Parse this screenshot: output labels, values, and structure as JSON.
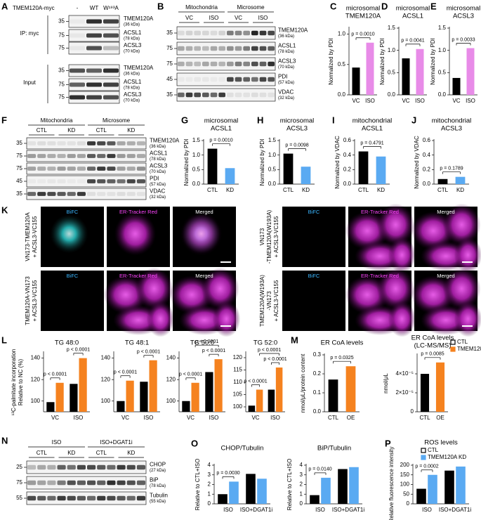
{
  "panels": {
    "A": {
      "letter": "A",
      "header": "TMEM120A-myc",
      "lanes": [
        "-",
        "WT",
        "W¹⁹³A"
      ],
      "groups": [
        "IP: myc",
        "Input"
      ],
      "markers": [
        35,
        75,
        75,
        35,
        75,
        75
      ],
      "bands": [
        {
          "name": "TMEM120A",
          "size": "(36 kDa)"
        },
        {
          "name": "ACSL1",
          "size": "(78 kDa)"
        },
        {
          "name": "ACSL3",
          "size": "(70 kDa)"
        },
        {
          "name": "TMEM120A",
          "size": "(36 kDa)"
        },
        {
          "name": "ACSL1",
          "size": "(78 kDa)"
        },
        {
          "name": "ACSL3",
          "size": "(70 kDa)"
        }
      ]
    },
    "B": {
      "letter": "B",
      "fractions": [
        "Mitochondria",
        "Microsome"
      ],
      "conditions": [
        "VC",
        "ISO",
        "VC",
        "ISO"
      ],
      "markers": [
        35,
        75,
        75,
        45,
        35
      ],
      "bands": [
        {
          "name": "TMEM120A",
          "size": "(36 kDa)"
        },
        {
          "name": "ACSL1",
          "size": "(78 kDa)"
        },
        {
          "name": "ACSL3",
          "size": "(70 kDa)"
        },
        {
          "name": "PDI",
          "size": "(57 kDa)"
        },
        {
          "name": "VDAC",
          "size": "(32 kDa)"
        }
      ]
    },
    "F": {
      "letter": "F",
      "fractions": [
        "Mitochondria",
        "Microsome"
      ],
      "conditions": [
        "CTL",
        "KD",
        "CTL",
        "KD"
      ],
      "markers": [
        35,
        75,
        75,
        45,
        35
      ],
      "bands": [
        {
          "name": "TMEM120A",
          "size": "(36 kDa)"
        },
        {
          "name": "ACSL1",
          "size": "(78 kDa)"
        },
        {
          "name": "ACSL3",
          "size": "(70 kDa)"
        },
        {
          "name": "PDI",
          "size": "(57 kDa)"
        },
        {
          "name": "VDAC",
          "size": "(32 kDa)"
        }
      ]
    },
    "K": {
      "letter": "K",
      "channels": [
        "BiFC",
        "ER-Tracker Red",
        "Merged"
      ],
      "constructs": [
        [
          "VN173-TMEM120A",
          "+ ACSL3-VC155"
        ],
        [
          "VN173",
          "-TMEM120A(W193A)",
          "+ ACSL3-VC155"
        ],
        [
          "TMEM120A-VN173",
          "+ ACSL3-VC155"
        ],
        [
          "TMEM120A(W193A)",
          "-VN173",
          "+ ACSL3-VC155"
        ]
      ]
    },
    "N": {
      "letter": "N",
      "fractions": [
        "ISO",
        "ISO+DGAT1i"
      ],
      "conditions": [
        "CTL",
        "KD",
        "CTL",
        "KD"
      ],
      "markers": [
        25,
        75,
        55
      ],
      "bands": [
        {
          "name": "CHOP",
          "size": "(27 kDa)"
        },
        {
          "name": "BiP",
          "size": "(78 kDa)"
        },
        {
          "name": "Tubulin",
          "size": "(55 kDa)"
        }
      ]
    }
  },
  "legends": [
    {
      "entries": [
        {
          "label": "CTL",
          "color": "#000000"
        },
        {
          "label": "TMEM120A OE",
          "color": "#f5821f"
        }
      ]
    },
    {
      "entries": [
        {
          "label": "CTL",
          "color": "#000000"
        },
        {
          "label": "TMEM120A KD",
          "color": "#5aaaf2"
        }
      ]
    }
  ],
  "chart_data": [
    {
      "type": "bar",
      "letter": "C",
      "title": [
        "microsomal",
        "TMEM120A"
      ],
      "ylabel": [
        "Normalized by PDI"
      ],
      "categories": [
        "VC",
        "ISO"
      ],
      "values": [
        0.45,
        0.86
      ],
      "colors": [
        "#000000",
        "#e88be8"
      ],
      "ylim": [
        0,
        1.1
      ],
      "yticks": [
        {
          "value": 0,
          "label": "0.0"
        },
        0.5,
        {
          "value": 1,
          "label": "1.0"
        }
      ],
      "annotations": [
        "p = 0.0010"
      ]
    },
    {
      "type": "bar",
      "letter": "D",
      "title": [
        "microsomal",
        "ACSL1"
      ],
      "ylabel": [
        "Normalized by PDI"
      ],
      "categories": [
        "VC",
        "ISO"
      ],
      "values": [
        0.82,
        1.03
      ],
      "colors": [
        "#000000",
        "#e88be8"
      ],
      "ylim": [
        0,
        1.5
      ],
      "yticks": [
        {
          "value": 0,
          "label": "0.0"
        },
        0.5,
        {
          "value": 1,
          "label": "1.0"
        },
        1.5
      ],
      "annotations": [
        "p = 0.0041"
      ]
    },
    {
      "type": "bar",
      "letter": "E",
      "title": [
        "microsomal",
        "ACSL3"
      ],
      "ylabel": [
        "Normalized by PDI"
      ],
      "categories": [
        "VC",
        "ISO"
      ],
      "values": [
        0.38,
        1.05
      ],
      "colors": [
        "#000000",
        "#e88be8"
      ],
      "ylim": [
        0,
        1.5
      ],
      "yticks": [
        {
          "value": 0,
          "label": "0.0"
        },
        0.5,
        {
          "value": 1,
          "label": "1.0"
        },
        1.5
      ],
      "annotations": [
        "p = 0.0033"
      ]
    },
    {
      "type": "bar",
      "letter": "G",
      "title": [
        "microsomal",
        "ACSL1"
      ],
      "ylabel": [
        "Normalized by PDI"
      ],
      "categories": [
        "CTL",
        "KD"
      ],
      "values": [
        1.22,
        0.55
      ],
      "colors": [
        "#000000",
        "#5aaaf2"
      ],
      "ylim": [
        0,
        1.5
      ],
      "yticks": [
        {
          "value": 0,
          "label": "0.0"
        },
        0.5,
        {
          "value": 1,
          "label": "1.0"
        },
        1.5
      ],
      "annotations": [
        "p = 0.0010"
      ]
    },
    {
      "type": "bar",
      "letter": "H",
      "title": [
        "microsomal",
        "ACSL3"
      ],
      "ylabel": [
        "Normalized by PDI"
      ],
      "categories": [
        "CTL",
        "KD"
      ],
      "values": [
        1.05,
        0.6
      ],
      "colors": [
        "#000000",
        "#5aaaf2"
      ],
      "ylim": [
        0,
        1.5
      ],
      "yticks": [
        {
          "value": 0,
          "label": "0.0"
        },
        0.5,
        {
          "value": 1,
          "label": "1.0"
        },
        1.5
      ],
      "annotations": [
        "p = 0.0098"
      ]
    },
    {
      "type": "bar",
      "letter": "I",
      "title": [
        "mitochondrial",
        "ACSL1"
      ],
      "ylabel": [
        "Normalized by VDAC"
      ],
      "categories": [
        "CTL",
        "KD"
      ],
      "values": [
        0.45,
        0.38
      ],
      "colors": [
        "#000000",
        "#5aaaf2"
      ],
      "ylim": [
        0,
        0.6
      ],
      "yticks": [
        {
          "value": 0,
          "label": "0.0"
        },
        0.2,
        0.4,
        0.6
      ],
      "annotations": [
        "p = 0.4791"
      ]
    },
    {
      "type": "bar",
      "letter": "J",
      "title": [
        "mitochondrial",
        "ACSL3"
      ],
      "ylabel": [
        "Normalized by VDAC"
      ],
      "categories": [
        "CTL",
        "KD"
      ],
      "values": [
        0.07,
        0.1
      ],
      "colors": [
        "#000000",
        "#5aaaf2"
      ],
      "ylim": [
        0,
        0.6
      ],
      "yticks": [
        {
          "value": 0,
          "label": "0.0"
        },
        0.2,
        0.4,
        0.6
      ],
      "annotations": [
        "p = 0.1789"
      ]
    },
    {
      "type": "grouped-bar",
      "letter": "L",
      "title": [
        "TG 48:0"
      ],
      "ylabel": [
        "¹³C-palmitate incorporation",
        "Relative to NC (%)"
      ],
      "categories": [
        "VC",
        "ISO"
      ],
      "series": [
        {
          "color": "#000000",
          "values": [
            99,
            116
          ]
        },
        {
          "color": "#f5821f",
          "values": [
            117,
            140
          ]
        }
      ],
      "ylim": [
        90,
        145
      ],
      "yticks": [
        100,
        120,
        140
      ],
      "annotations": [
        "p < 0.0001",
        "p < 0.0001"
      ]
    },
    {
      "type": "grouped-bar",
      "title": [
        "TG 48:1"
      ],
      "categories": [
        "VC",
        "ISO"
      ],
      "series": [
        {
          "color": "#000000",
          "values": [
            100,
            118
          ]
        },
        {
          "color": "#f5821f",
          "values": [
            119,
            138
          ]
        }
      ],
      "ylim": [
        90,
        145
      ],
      "yticks": [
        100,
        120,
        140
      ],
      "annotations": [
        "p < 0.0001",
        "p < 0.0001"
      ]
    },
    {
      "type": "grouped-bar",
      "title": [
        "TG 50:0"
      ],
      "categories": [
        "VC",
        "ISO"
      ],
      "series": [
        {
          "color": "#000000",
          "values": [
            100,
            127
          ]
        },
        {
          "color": "#f5821f",
          "values": [
            117,
            139
          ]
        }
      ],
      "ylim": [
        90,
        145
      ],
      "yticks": [
        100,
        120,
        140
      ],
      "annotations": [
        "p < 0.0001",
        "p < 0.0001",
        "p < 0.0001"
      ]
    },
    {
      "type": "grouped-bar",
      "title": [
        "TG 52:0"
      ],
      "categories": [
        "VC",
        "ISO"
      ],
      "series": [
        {
          "color": "#000000",
          "values": [
            100.5,
            107
          ]
        },
        {
          "color": "#f5821f",
          "values": [
            107,
            116
          ]
        }
      ],
      "ylim": [
        98,
        122
      ],
      "yticks": [
        100,
        105,
        110,
        115,
        120
      ],
      "annotations": [
        "p < 0.0001",
        "p < 0.0001",
        "p < 0.0001"
      ]
    },
    {
      "type": "bar",
      "letter": "M",
      "title": [
        "ER CoA levels"
      ],
      "ylabel": [
        "nmol/μL/protein content"
      ],
      "categories": [
        "CTL",
        "OE"
      ],
      "values": [
        0.17,
        0.24
      ],
      "colors": [
        "#000000",
        "#f5821f"
      ],
      "ylim": [
        0,
        0.3
      ],
      "yticks": [
        {
          "value": 0,
          "label": "0.0"
        },
        0.1,
        0.2,
        0.3
      ],
      "annotations": [
        "p = 0.0325"
      ]
    },
    {
      "type": "bar",
      "title": [
        "ER CoA levels",
        "(LC-MS/MS)"
      ],
      "ylabel": [
        "nmol/μL"
      ],
      "categories": [
        "CTL",
        "OE"
      ],
      "values": [
        4e-05,
        5.2e-05
      ],
      "colors": [
        "#000000",
        "#f5821f"
      ],
      "ylim": [
        0,
        6e-05
      ],
      "yticks": [
        0,
        {
          "value": 2e-05,
          "label": "2×10⁻⁵"
        },
        {
          "value": 4e-05,
          "label": "4×10⁻⁵"
        }
      ],
      "annotations": [
        "p = 0.0085"
      ]
    },
    {
      "type": "grouped-bar",
      "letter": "O",
      "title": [
        "CHOP/Tubulin"
      ],
      "ylabel": [
        "Relative to CTL+ISO"
      ],
      "categories": [
        "ISO",
        "ISO+DGAT1i"
      ],
      "series": [
        {
          "color": "#000000",
          "values": [
            1.0,
            3.1
          ]
        },
        {
          "color": "#5aaaf2",
          "values": [
            2.3,
            2.6
          ]
        }
      ],
      "ylim": [
        0,
        4
      ],
      "yticks": [
        0,
        1,
        2,
        3,
        4
      ],
      "annotations": [
        "p = 0.0030"
      ]
    },
    {
      "type": "grouped-bar",
      "title": [
        "BiP/Tubulin"
      ],
      "ylabel": [
        "Relative to CTL+ISO"
      ],
      "categories": [
        "ISO",
        "ISO+DGAT1i"
      ],
      "series": [
        {
          "color": "#000000",
          "values": [
            0.9,
            3.6
          ]
        },
        {
          "color": "#5aaaf2",
          "values": [
            2.7,
            3.8
          ]
        }
      ],
      "ylim": [
        0,
        4
      ],
      "yticks": [
        0,
        1,
        2,
        3,
        4
      ],
      "annotations": [
        "p = 0.0140"
      ]
    },
    {
      "type": "grouped-bar",
      "letter": "P",
      "title": [
        "ROS levels"
      ],
      "ylabel": [
        "Relative fluorescence intensity"
      ],
      "categories": [
        "ISO",
        "ISO+DGAT1i"
      ],
      "series": [
        {
          "color": "#000000",
          "values": [
            78,
            172
          ]
        },
        {
          "color": "#5aaaf2",
          "values": [
            150,
            193
          ]
        }
      ],
      "ylim": [
        0,
        200
      ],
      "yticks": [
        0,
        50,
        100,
        150,
        200
      ],
      "annotations": [
        "p = 0.0002"
      ]
    }
  ]
}
